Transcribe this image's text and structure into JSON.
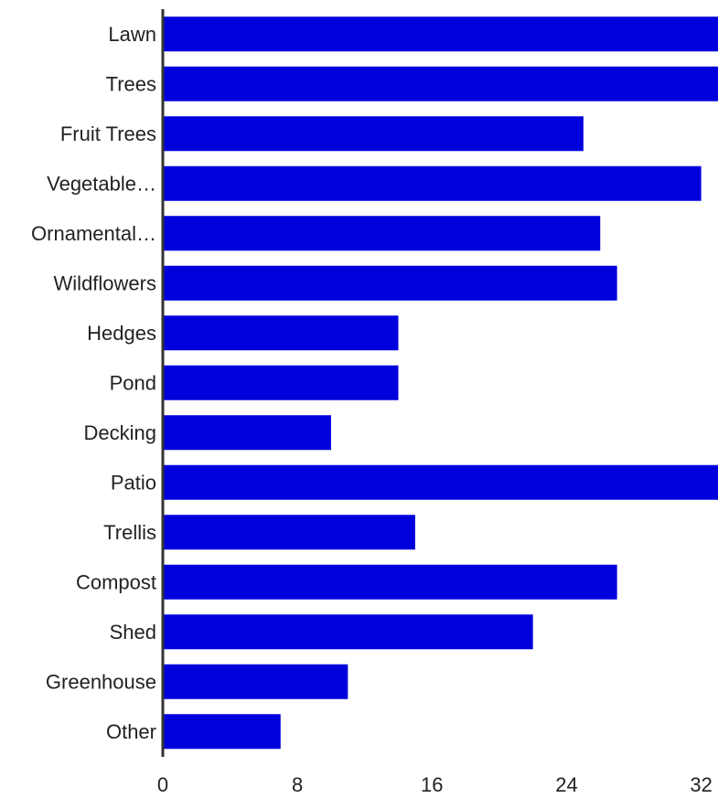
{
  "chart_data": {
    "type": "bar",
    "orientation": "horizontal",
    "categories": [
      "Lawn",
      "Trees",
      "Fruit Trees",
      "Vegetable…",
      "Ornamental…",
      "Wildflowers",
      "Hedges",
      "Pond",
      "Decking",
      "Patio",
      "Trellis",
      "Compost",
      "Shed",
      "Greenhouse",
      "Other"
    ],
    "values": [
      33,
      33,
      25,
      32,
      26,
      27,
      14,
      14,
      10,
      33,
      15,
      27,
      22,
      11,
      7
    ],
    "xlim": [
      0,
      33
    ],
    "x_ticks": [
      "0",
      "8",
      "16",
      "24",
      "32"
    ],
    "title": "",
    "xlabel": "",
    "ylabel": "",
    "grid": false,
    "bar_color": "#0000dd",
    "axis_color": "#333333"
  }
}
